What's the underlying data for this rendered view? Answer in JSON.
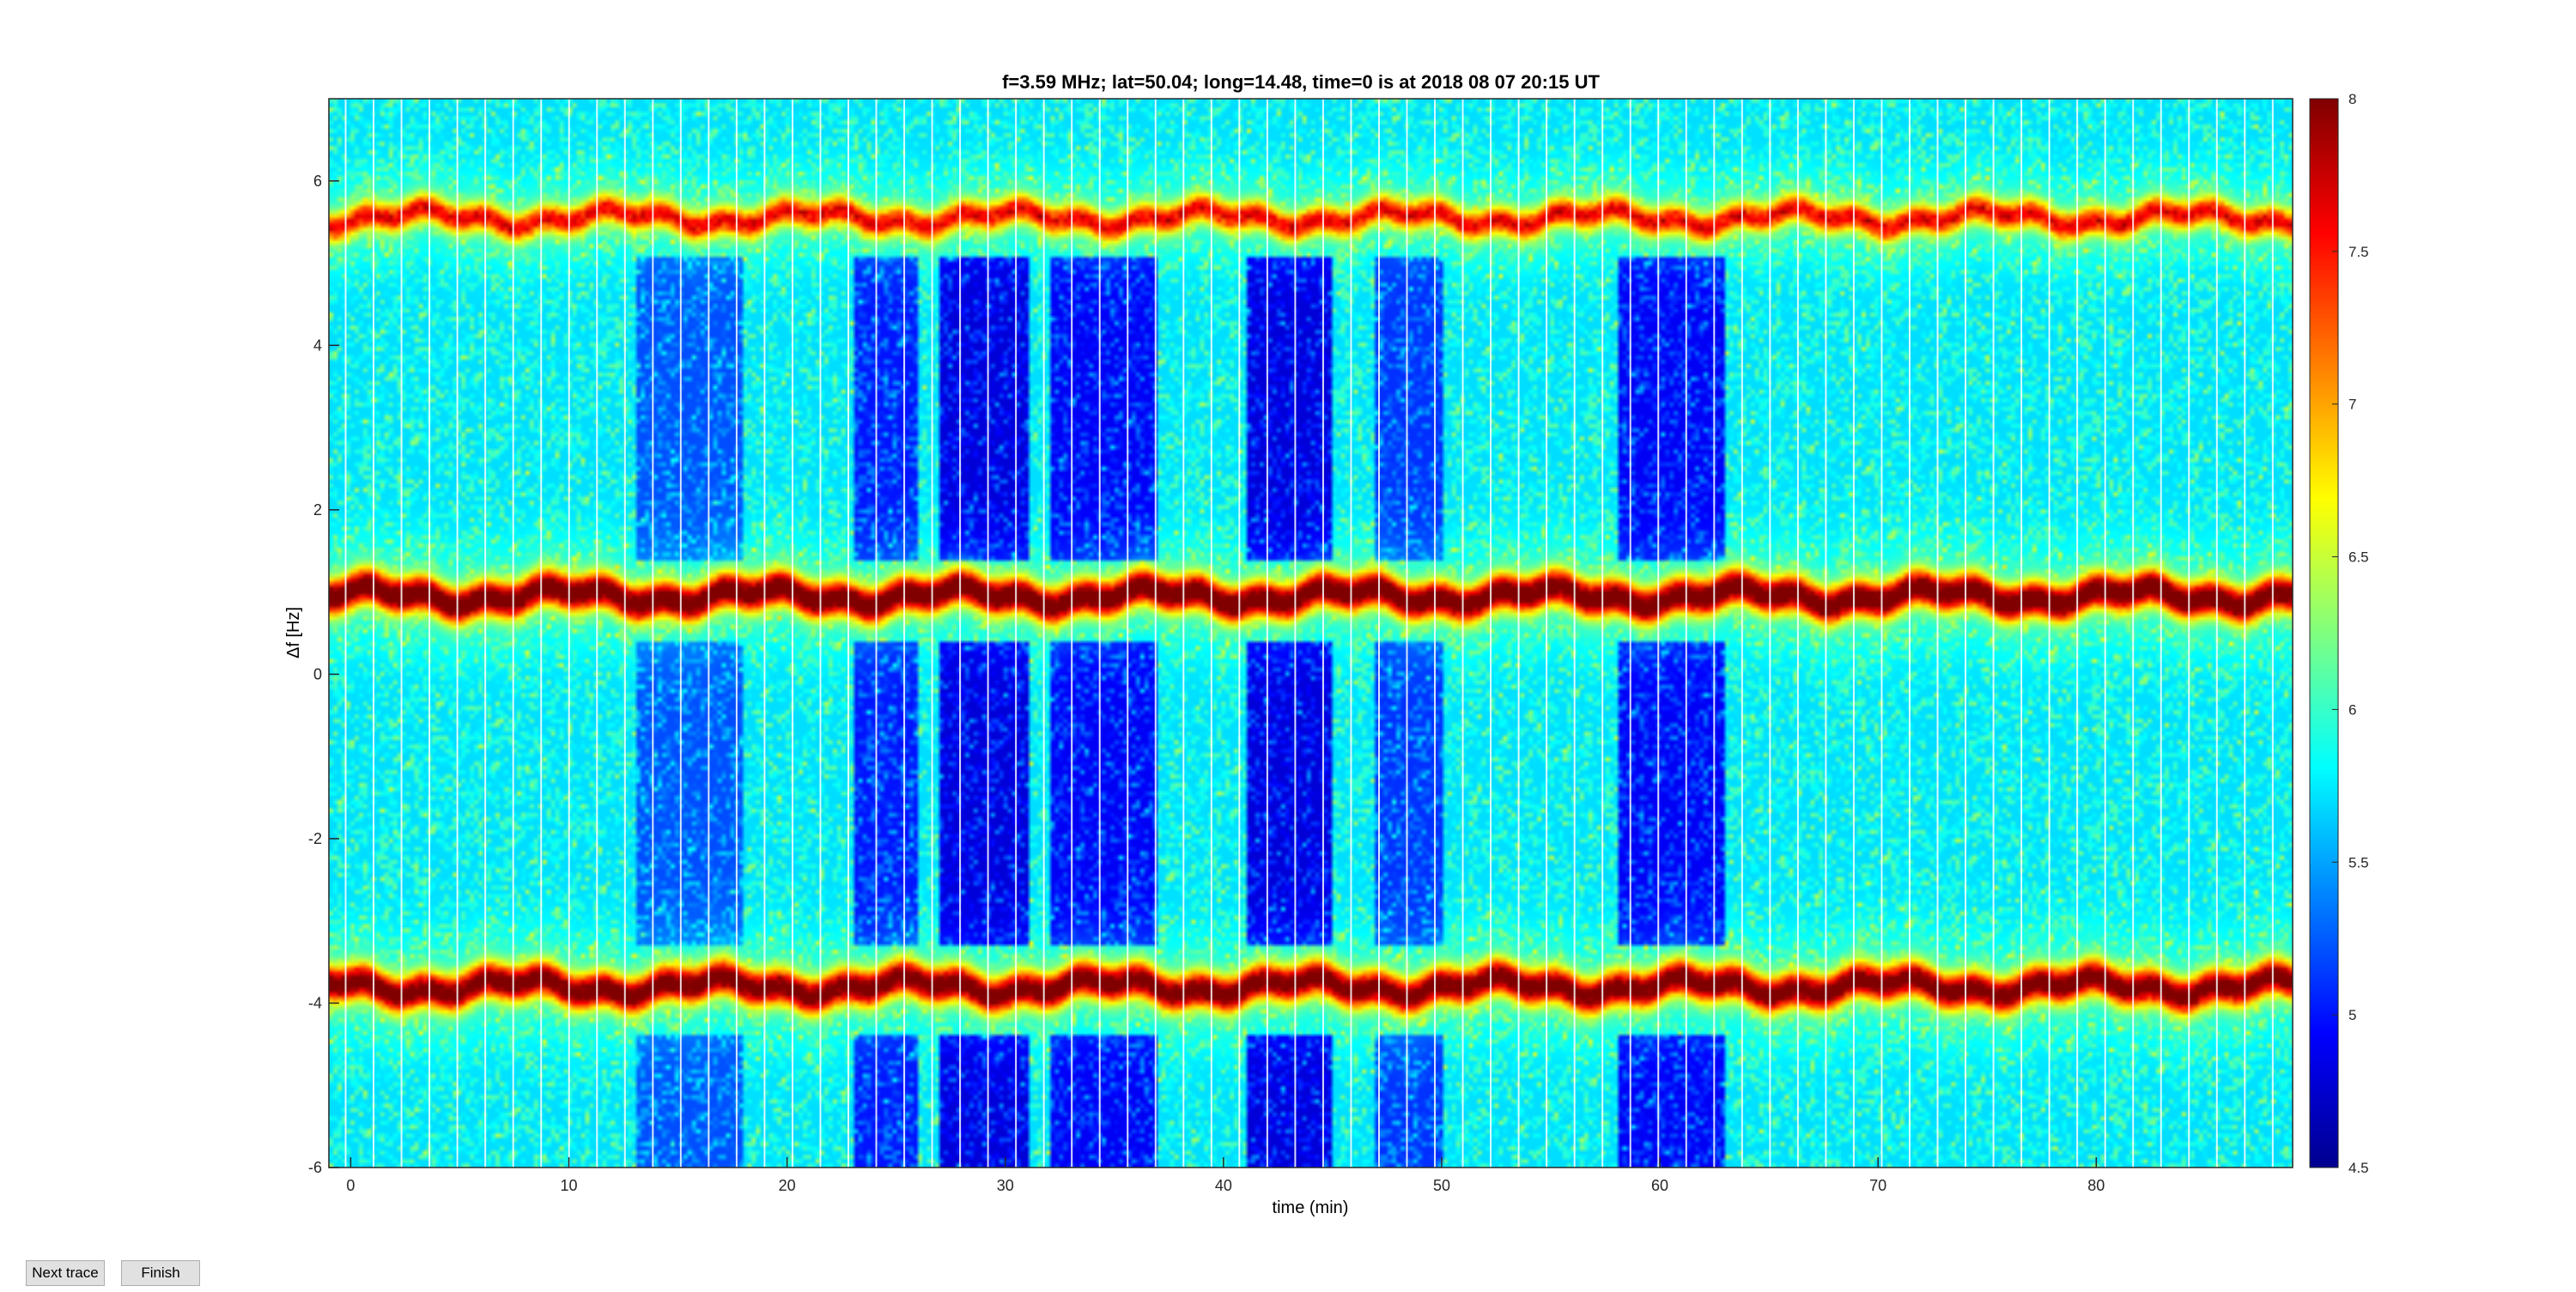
{
  "chart_data": {
    "type": "heatmap",
    "title": "f=3.59 MHz;  lat=50.04; long=14.48, time=0 is at 2018 08 07 20:15 UT",
    "xlabel": "time (min)",
    "ylabel": "Δf [Hz]",
    "xlim": [
      -1,
      89
    ],
    "ylim": [
      -6,
      7
    ],
    "x_ticks": [
      0,
      10,
      20,
      30,
      40,
      50,
      60,
      70,
      80
    ],
    "y_ticks": [
      -6,
      -4,
      -2,
      0,
      2,
      4,
      6
    ],
    "colorbar": {
      "range": [
        4.5,
        8
      ],
      "ticks": [
        "8",
        "7.5",
        "7",
        "6.5",
        "6",
        "5.5",
        "5",
        "4.5"
      ],
      "colormap": "jet"
    },
    "background_level": 5.7,
    "spectral_lines": [
      {
        "center_hz": 5.55,
        "peak": 7.3,
        "width_hz": 0.12
      },
      {
        "center_hz": 0.95,
        "peak": 8.0,
        "width_hz": 0.15
      },
      {
        "center_hz": -3.8,
        "peak": 7.9,
        "width_hz": 0.15
      }
    ],
    "low_level_blocks": [
      {
        "t_start": 13,
        "t_end": 18,
        "level": 5.2
      },
      {
        "t_start": 23,
        "t_end": 26,
        "level": 5.0
      },
      {
        "t_start": 27,
        "t_end": 31,
        "level": 4.8
      },
      {
        "t_start": 32,
        "t_end": 37,
        "level": 4.9
      },
      {
        "t_start": 41,
        "t_end": 45,
        "level": 4.8
      },
      {
        "t_start": 47,
        "t_end": 50,
        "level": 5.1
      },
      {
        "t_start": 58,
        "t_end": 63,
        "level": 4.9
      }
    ],
    "trace_gap_interval_min": 1.28,
    "grid": false,
    "legend": "none"
  },
  "buttons": {
    "next_trace": "Next trace",
    "finish": "Finish"
  }
}
